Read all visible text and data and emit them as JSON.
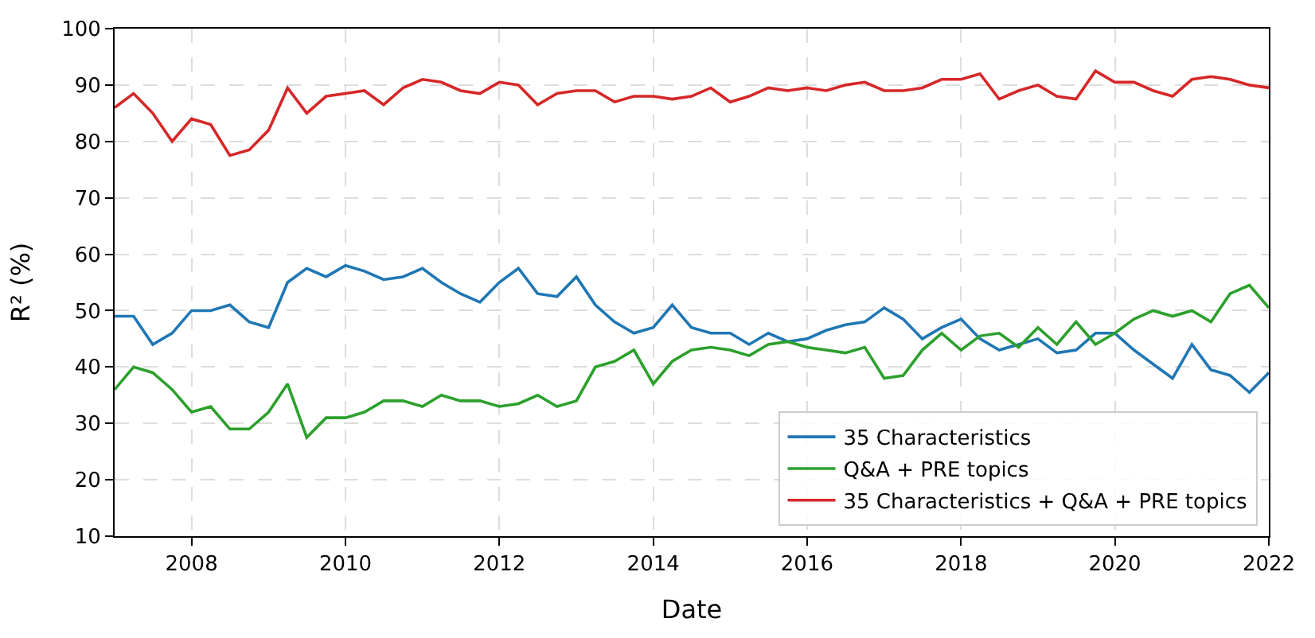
{
  "chart_data": {
    "type": "line",
    "xlabel": "Date",
    "ylabel": "R² (%)",
    "x": [
      "2007-01",
      "2007-04",
      "2007-07",
      "2007-10",
      "2008-01",
      "2008-04",
      "2008-07",
      "2008-10",
      "2009-01",
      "2009-04",
      "2009-07",
      "2009-10",
      "2010-01",
      "2010-04",
      "2010-07",
      "2010-10",
      "2011-01",
      "2011-04",
      "2011-07",
      "2011-10",
      "2012-01",
      "2012-04",
      "2012-07",
      "2012-10",
      "2013-01",
      "2013-04",
      "2013-07",
      "2013-10",
      "2014-01",
      "2014-04",
      "2014-07",
      "2014-10",
      "2015-01",
      "2015-04",
      "2015-07",
      "2015-10",
      "2016-01",
      "2016-04",
      "2016-07",
      "2016-10",
      "2017-01",
      "2017-04",
      "2017-07",
      "2017-10",
      "2018-01",
      "2018-04",
      "2018-07",
      "2018-10",
      "2019-01",
      "2019-04",
      "2019-07",
      "2019-10",
      "2020-01",
      "2020-04",
      "2020-07",
      "2020-10",
      "2021-01",
      "2021-04",
      "2021-07",
      "2021-10",
      "2022-01"
    ],
    "series": [
      {
        "name": "35 Characteristics",
        "color": "#1f77b4",
        "values": [
          49,
          49,
          44,
          46,
          50,
          50,
          51,
          48,
          47,
          55,
          57.5,
          56,
          58,
          57,
          55.5,
          56,
          57.5,
          55,
          53,
          51.5,
          55,
          57.5,
          53,
          52.5,
          56,
          51,
          48,
          46,
          47,
          51,
          47,
          46,
          46,
          44,
          46,
          44.5,
          45,
          46.5,
          47.5,
          48,
          50.5,
          48.5,
          45,
          47,
          48.5,
          45,
          43,
          44,
          45,
          42.5,
          43,
          46,
          46,
          43,
          40.5,
          38,
          44,
          39.5,
          38.5,
          35.5,
          39
        ]
      },
      {
        "name": "Q&A + PRE topics",
        "color": "#2ca02c",
        "values": [
          36,
          40,
          39,
          36,
          32,
          33,
          29,
          29,
          32,
          37,
          27.5,
          31,
          31,
          32,
          34,
          34,
          33,
          35,
          34,
          34,
          33,
          33.5,
          35,
          33,
          34,
          40,
          41,
          43,
          37,
          41,
          43,
          43.5,
          43,
          42,
          44,
          44.5,
          43.5,
          43,
          42.5,
          43.5,
          38,
          38.5,
          43,
          46,
          43,
          45.5,
          46,
          43.5,
          47,
          44,
          48,
          44,
          46,
          48.5,
          50,
          49,
          50,
          48,
          53,
          54.5,
          50.5
        ]
      },
      {
        "name": "35 Characteristics + Q&A + PRE topics",
        "color": "#d62728",
        "values": [
          86,
          88.5,
          85,
          80,
          84,
          83,
          77.5,
          78.5,
          82,
          89.5,
          85,
          88,
          88.5,
          89,
          86.5,
          89.5,
          91,
          90.5,
          89,
          88.5,
          90.5,
          90,
          86.5,
          88.5,
          89,
          89,
          87,
          88,
          88,
          87.5,
          88,
          89.5,
          87,
          88,
          89.5,
          89,
          89.5,
          89,
          90,
          90.5,
          89,
          89,
          89.5,
          91,
          91,
          92,
          87.5,
          89,
          90,
          88,
          87.5,
          92.5,
          90.5,
          90.5,
          89,
          88,
          91,
          91.5,
          91,
          90,
          89.5
        ]
      }
    ],
    "xlim": [
      "2007-01",
      "2022-01"
    ],
    "xticks": [
      {
        "value": "2008-01",
        "label": "2008"
      },
      {
        "value": "2010-01",
        "label": "2010"
      },
      {
        "value": "2012-01",
        "label": "2012"
      },
      {
        "value": "2014-01",
        "label": "2014"
      },
      {
        "value": "2016-01",
        "label": "2016"
      },
      {
        "value": "2018-01",
        "label": "2018"
      },
      {
        "value": "2020-01",
        "label": "2020"
      },
      {
        "value": "2022-01",
        "label": "2022"
      }
    ],
    "ylim": [
      10,
      100
    ],
    "yticks": [
      10,
      20,
      30,
      40,
      50,
      60,
      70,
      80,
      90,
      100
    ],
    "grid": true,
    "legend": "bottom right",
    "line_style": "solid"
  }
}
